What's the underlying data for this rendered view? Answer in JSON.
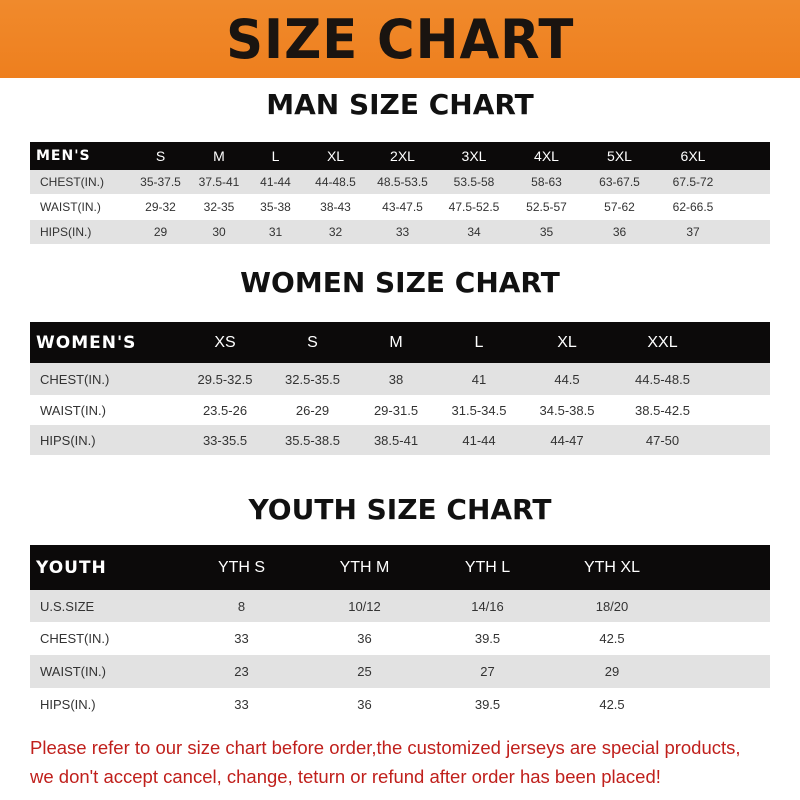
{
  "banner_title": "SIZE CHART",
  "men": {
    "title": "MAN SIZE CHART",
    "header": [
      "MEN'S",
      "S",
      "M",
      "L",
      "XL",
      "2XL",
      "3XL",
      "4XL",
      "5XL",
      "6XL"
    ],
    "rows": [
      [
        "CHEST(IN.)",
        "35-37.5",
        "37.5-41",
        "41-44",
        "44-48.5",
        "48.5-53.5",
        "53.5-58",
        "58-63",
        "63-67.5",
        "67.5-72"
      ],
      [
        "WAIST(IN.)",
        "29-32",
        "32-35",
        "35-38",
        "38-43",
        "43-47.5",
        "47.5-52.5",
        "52.5-57",
        "57-62",
        "62-66.5"
      ],
      [
        "HIPS(IN.)",
        "29",
        "30",
        "31",
        "32",
        "33",
        "34",
        "35",
        "36",
        "37"
      ]
    ]
  },
  "women": {
    "title": "WOMEN SIZE CHART",
    "header": [
      "WOMEN'S",
      "XS",
      "S",
      "M",
      "L",
      "XL",
      "XXL"
    ],
    "rows": [
      [
        "CHEST(IN.)",
        "29.5-32.5",
        "32.5-35.5",
        "38",
        "41",
        "44.5",
        "44.5-48.5"
      ],
      [
        "WAIST(IN.)",
        "23.5-26",
        "26-29",
        "29-31.5",
        "31.5-34.5",
        "34.5-38.5",
        "38.5-42.5"
      ],
      [
        "HIPS(IN.)",
        "33-35.5",
        "35.5-38.5",
        "38.5-41",
        "41-44",
        "44-47",
        "47-50"
      ]
    ]
  },
  "youth": {
    "title": "YOUTH SIZE CHART",
    "header": [
      "YOUTH",
      "YTH S",
      "YTH M",
      "YTH L",
      "YTH XL"
    ],
    "rows": [
      [
        "U.S.SIZE",
        "8",
        "10/12",
        "14/16",
        "18/20"
      ],
      [
        "CHEST(IN.)",
        "33",
        "36",
        "39.5",
        "42.5"
      ],
      [
        "WAIST(IN.)",
        "23",
        "25",
        "27",
        "29"
      ],
      [
        "HIPS(IN.)",
        "33",
        "36",
        "39.5",
        "42.5"
      ]
    ]
  },
  "note_lines": [
    "Please refer to our size chart before order,the customized jerseys are special products,",
    "we don't accept cancel, change, teturn or refund after order has been placed!"
  ],
  "colors": {
    "banner": "#f08a2c",
    "header_row": "#0c0a0a",
    "note": "#c0201c"
  }
}
